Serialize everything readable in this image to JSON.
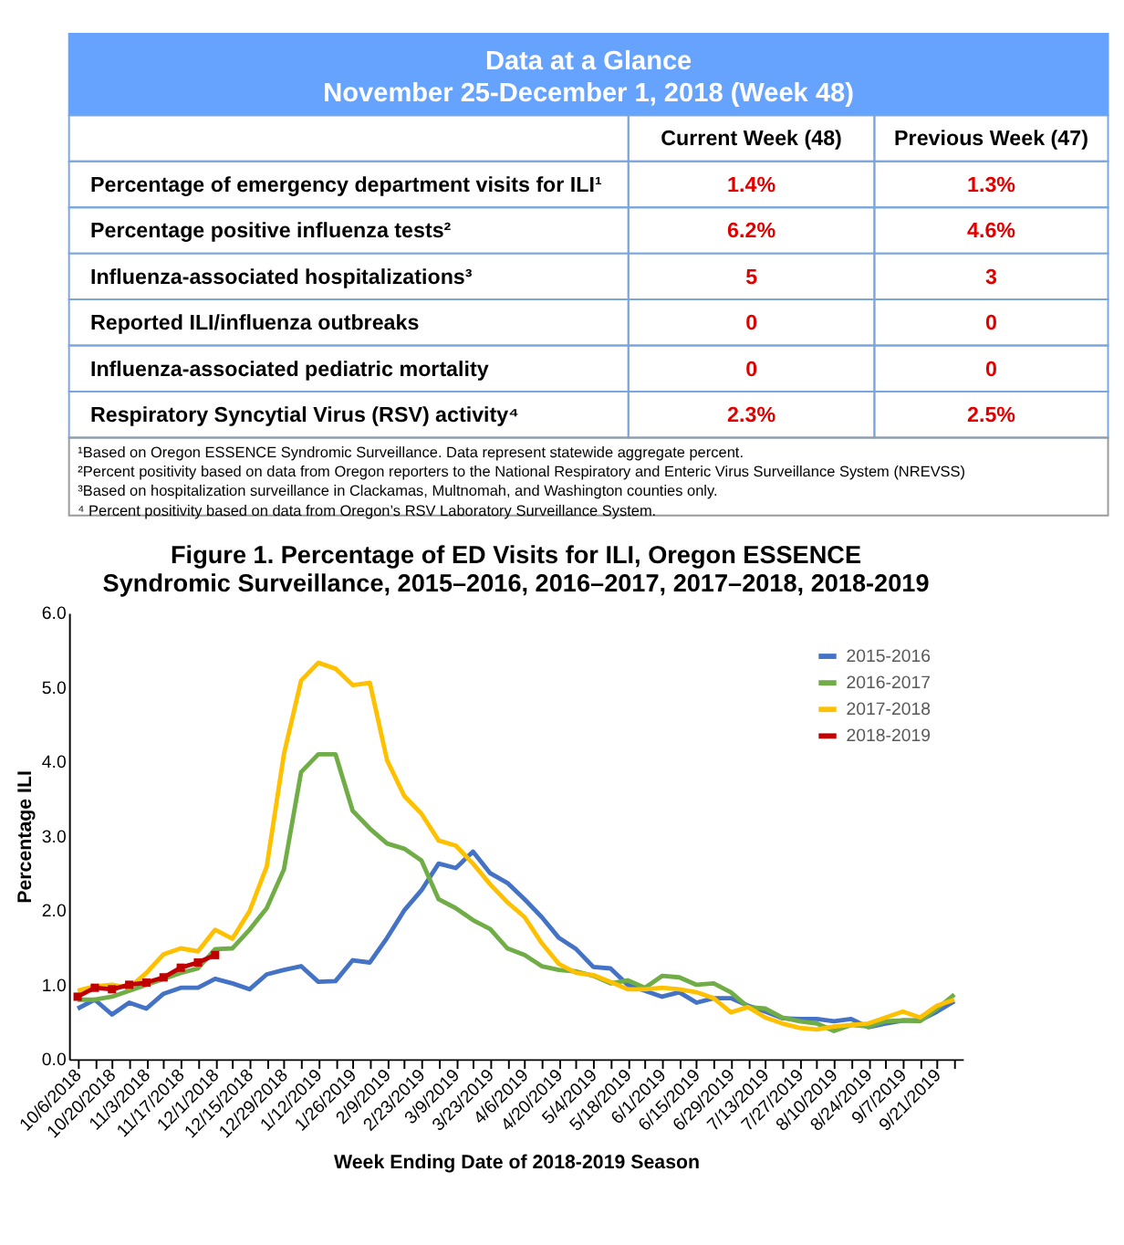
{
  "chart_data": [
    {
      "type": "other",
      "title": "Data at a Glance",
      "subtitle": "November 25-December 1, 2018 (Week 48)",
      "categories": [
        "Percentage of emergency department visits for ILI¹",
        "Percentage positive influenza tests²",
        "Influenza-associated hospitalizations³",
        "Reported ILI/influenza outbreaks",
        "Influenza-associated pediatric mortality",
        "Respiratory Syncytial Virus (RSV) activity⁴"
      ],
      "series": [
        {
          "name": "Current Week (48)",
          "values": [
            1.4,
            6.2,
            5,
            0,
            0,
            2.3
          ],
          "value_labels": [
            "1.4%",
            "6.2%",
            "5",
            "0",
            "0",
            "2.3%"
          ]
        },
        {
          "name": "Previous Week (47)",
          "values": [
            1.3,
            4.6,
            3,
            0,
            0,
            2.5
          ],
          "value_labels": [
            "1.3%",
            "4.6%",
            "3",
            "0",
            "0",
            "2.5%"
          ]
        }
      ],
      "annotations": [
        "¹Based on Oregon ESSENCE Syndromic Surveillance. Data represent statewide aggregate percent.",
        "²Percent positivity based on data from Oregon reporters to the National Respiratory and Enteric Virus Surveillance System (NREVSS)",
        "³Based on hospitalization surveillance in Clackamas, Multnomah, and Washington counties only.",
        "⁴ Percent positivity based on data from Oregon’s RSV Laboratory Surveillance System."
      ]
    },
    {
      "type": "line",
      "title": "Figure 1. Percentage of ED Visits for ILI, Oregon ESSENCE Syndromic Surveillance, 2015–2016, 2016–2017, 2017–2018, 2018-2019",
      "xlabel": "Week Ending Date of 2018-2019 Season",
      "ylabel": "Percentage ILI",
      "categories": [
        "10/6/2018",
        null,
        "10/20/2018",
        null,
        "11/3/2018",
        null,
        "11/17/2018",
        null,
        "12/1/2018",
        null,
        "12/15/2018",
        null,
        "12/29/2018",
        null,
        "1/12/2019",
        null,
        "1/26/2019",
        null,
        "2/9/2019",
        null,
        "2/23/2019",
        null,
        "3/9/2019",
        null,
        "3/23/2019",
        null,
        "4/6/2019",
        null,
        "4/20/2019",
        null,
        "5/4/2019",
        null,
        "5/18/2019",
        null,
        "6/1/2019",
        null,
        "6/15/2019",
        null,
        "6/29/2019",
        null,
        "7/13/2019",
        null,
        "7/27/2019",
        null,
        "8/10/2019",
        null,
        "8/24/2019",
        null,
        "9/7/2019",
        null,
        "9/21/2019",
        null
      ],
      "series": [
        {
          "name": "2015-2016",
          "color": "#4472c4",
          "marker": "none",
          "values": [
            0.68,
            0.8,
            0.6,
            0.76,
            0.68,
            0.88,
            0.96,
            0.96,
            1.08,
            1.02,
            0.94,
            1.14,
            1.2,
            1.25,
            1.04,
            1.05,
            1.33,
            1.3,
            1.63,
            2.0,
            2.27,
            2.63,
            2.57,
            2.79,
            2.5,
            2.37,
            2.15,
            1.91,
            1.63,
            1.48,
            1.24,
            1.22,
            1.0,
            0.92,
            0.84,
            0.9,
            0.76,
            0.82,
            0.82,
            0.72,
            0.64,
            0.55,
            0.54,
            0.54,
            0.51,
            0.54,
            0.43,
            0.48,
            0.52,
            0.52,
            0.64,
            0.78
          ]
        },
        {
          "name": "2016-2017",
          "color": "#70ad47",
          "marker": "none",
          "values": [
            0.8,
            0.8,
            0.84,
            0.92,
            1.0,
            1.08,
            1.16,
            1.22,
            1.48,
            1.49,
            1.74,
            2.03,
            2.55,
            3.86,
            4.1,
            4.1,
            3.34,
            3.1,
            2.9,
            2.83,
            2.67,
            2.15,
            2.03,
            1.87,
            1.75,
            1.49,
            1.4,
            1.25,
            1.2,
            1.18,
            1.12,
            1.02,
            1.06,
            0.96,
            1.12,
            1.1,
            1.0,
            1.02,
            0.9,
            0.7,
            0.68,
            0.56,
            0.51,
            0.48,
            0.38,
            0.46,
            0.44,
            0.51,
            0.52,
            0.51,
            0.68,
            0.87
          ]
        },
        {
          "name": "2017-2018",
          "color": "#ffc000",
          "marker": "none",
          "values": [
            0.92,
            0.98,
            1.0,
            0.96,
            1.16,
            1.41,
            1.49,
            1.45,
            1.74,
            1.62,
            1.99,
            2.59,
            4.1,
            5.09,
            5.33,
            5.25,
            5.03,
            5.06,
            4.02,
            3.54,
            3.3,
            2.94,
            2.87,
            2.63,
            2.35,
            2.11,
            1.91,
            1.56,
            1.28,
            1.16,
            1.13,
            1.04,
            0.94,
            0.94,
            0.96,
            0.94,
            0.9,
            0.82,
            0.63,
            0.7,
            0.56,
            0.48,
            0.42,
            0.4,
            0.44,
            0.46,
            0.48,
            0.56,
            0.64,
            0.56,
            0.72,
            0.8
          ]
        },
        {
          "name": "2018-2019",
          "color": "#c00000",
          "marker": "square",
          "values": [
            0.84,
            0.96,
            0.94,
            1.0,
            1.03,
            1.1,
            1.23,
            1.3,
            1.4,
            null,
            null,
            null,
            null,
            null,
            null,
            null,
            null,
            null,
            null,
            null,
            null,
            null,
            null,
            null,
            null,
            null,
            null,
            null,
            null,
            null,
            null,
            null,
            null,
            null,
            null,
            null,
            null,
            null,
            null,
            null,
            null,
            null,
            null,
            null,
            null,
            null,
            null,
            null,
            null,
            null,
            null,
            null
          ]
        }
      ],
      "ylim": [
        0,
        6
      ],
      "yticks": [
        {
          "value": 0,
          "label": "0.0"
        },
        {
          "value": 1,
          "label": "1.0"
        },
        {
          "value": 2,
          "label": "2.0"
        },
        {
          "value": 3,
          "label": "3.0"
        },
        {
          "value": 4,
          "label": "4.0"
        },
        {
          "value": 5,
          "label": "5.0"
        },
        {
          "value": 6,
          "label": "6.0"
        }
      ],
      "grid": false,
      "legend": "top right",
      "line_style": "solid"
    }
  ]
}
